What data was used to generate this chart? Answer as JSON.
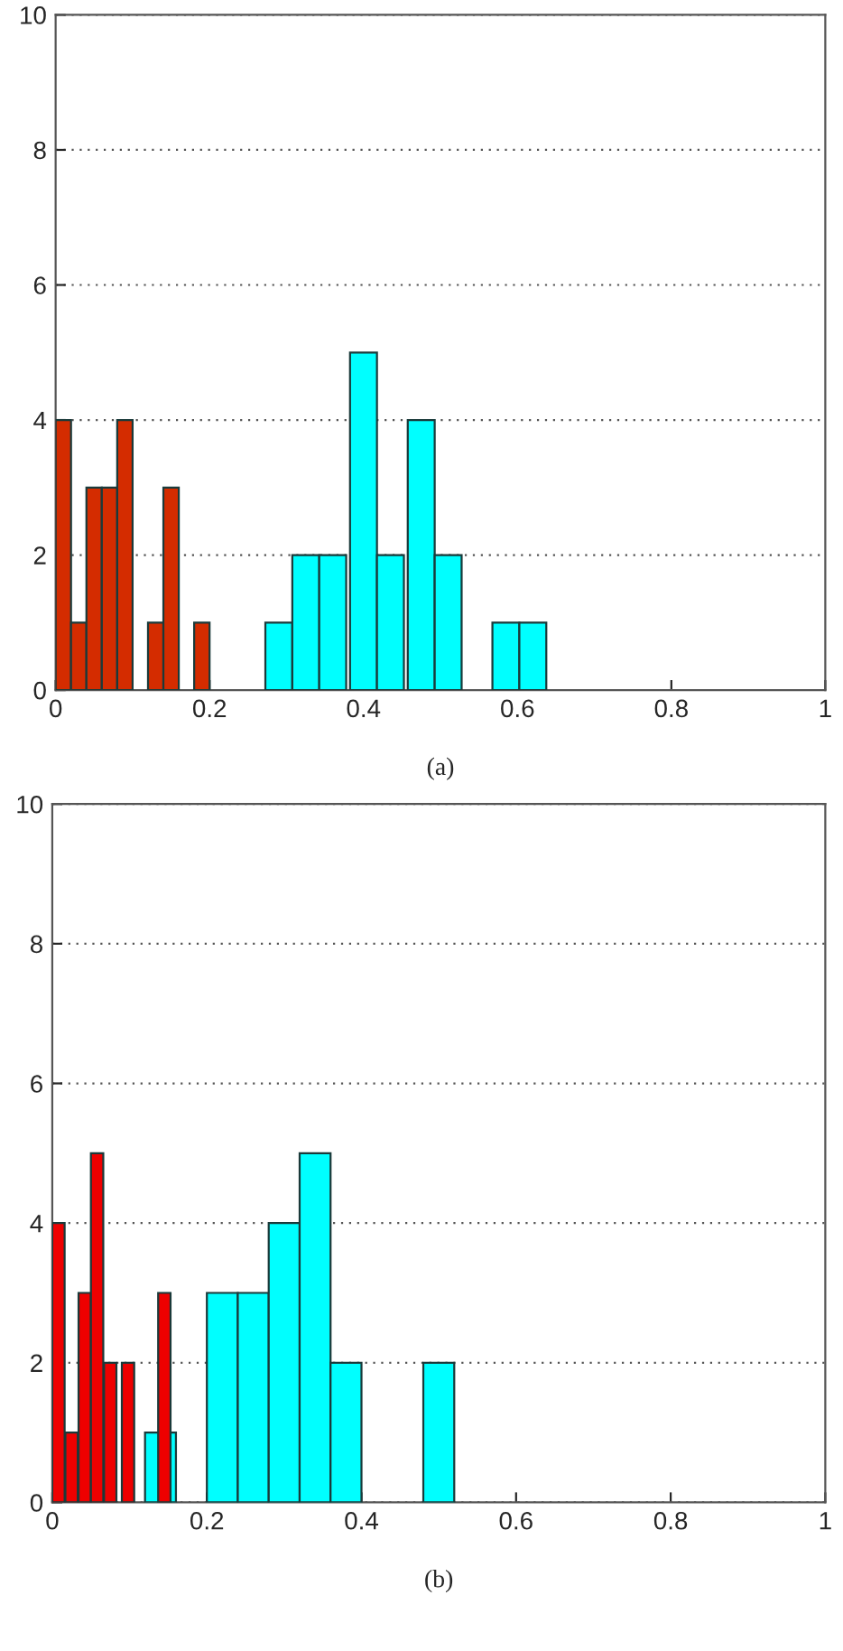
{
  "chart_data": [
    {
      "type": "bar",
      "xlabel": "(a)",
      "xlim": [
        0,
        1
      ],
      "xticks": [
        0,
        0.2,
        0.4,
        0.6,
        0.8,
        1
      ],
      "ylim": [
        0,
        10
      ],
      "yticks": [
        0,
        2,
        4,
        6,
        8,
        10
      ],
      "grid": "y",
      "series": [
        {
          "color": "#d42c00",
          "x": [
            0.01,
            0.03,
            0.05,
            0.07,
            0.09,
            0.13,
            0.15,
            0.19
          ],
          "values": [
            4,
            1,
            3,
            3,
            4,
            1,
            3,
            1
          ]
        },
        {
          "color": "#00ffff",
          "x": [
            0.29,
            0.325,
            0.36,
            0.4,
            0.435,
            0.475,
            0.51,
            0.585,
            0.62
          ],
          "values": [
            1,
            2,
            2,
            5,
            2,
            4,
            2,
            1,
            1
          ]
        }
      ]
    },
    {
      "type": "bar",
      "xlabel": "(b)",
      "xlim": [
        0,
        1
      ],
      "xticks": [
        0,
        0.2,
        0.4,
        0.6,
        0.8,
        1
      ],
      "ylim": [
        0,
        10
      ],
      "yticks": [
        0,
        2,
        4,
        6,
        8,
        10
      ],
      "grid": "y",
      "series": [
        {
          "color": "#00ffff",
          "x": [
            0.14,
            0.22,
            0.26,
            0.3,
            0.34,
            0.38,
            0.5
          ],
          "values": [
            1,
            3,
            3,
            4,
            5,
            2,
            2
          ]
        },
        {
          "color": "#ee0000",
          "x": [
            0.008,
            0.025,
            0.042,
            0.058,
            0.075,
            0.098,
            0.145
          ],
          "values": [
            4,
            1,
            3,
            5,
            2,
            2,
            3
          ]
        }
      ]
    }
  ]
}
